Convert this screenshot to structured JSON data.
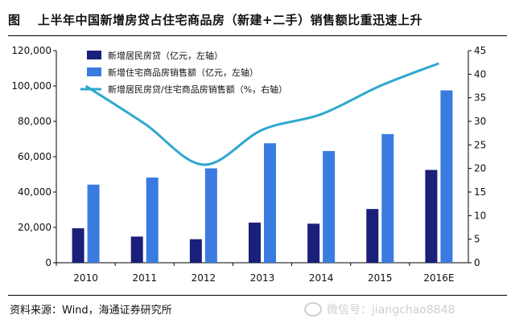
{
  "header": {
    "figure_label": "图",
    "title": "上半年中国新增房贷占住宅商品房（新建+二手）销售额比重迅速上升"
  },
  "chart_data": {
    "type": "bar",
    "categories": [
      "2010",
      "2011",
      "2012",
      "2013",
      "2014",
      "2015",
      "2016E"
    ],
    "series": [
      {
        "name": "新增居民房贷（亿元，左轴）",
        "kind": "bar",
        "axis": "left",
        "color": "#1a1f7a",
        "values": [
          19500,
          14800,
          13300,
          22700,
          22100,
          30400,
          52500
        ]
      },
      {
        "name": "新增住宅商品房销售额（亿元，左轴）",
        "kind": "bar",
        "axis": "left",
        "color": "#3a7be0",
        "values": [
          44200,
          48200,
          53400,
          67600,
          63200,
          72800,
          97500
        ]
      },
      {
        "name": "新增居民房贷/住宅商品房销售额（%，右轴）",
        "kind": "line",
        "axis": "right",
        "color": "#2ea8cf",
        "values": [
          37.5,
          29.5,
          20.8,
          28.2,
          31.5,
          37.5,
          42.3
        ]
      }
    ],
    "y_left": {
      "min": 0,
      "max": 120000,
      "ticks": [
        "0",
        "20,000",
        "40,000",
        "60,000",
        "80,000",
        "100,000",
        "120,000"
      ]
    },
    "y_right": {
      "min": 0,
      "max": 45,
      "ticks": [
        "0",
        "5",
        "10",
        "15",
        "20",
        "25",
        "30",
        "35",
        "40",
        "45"
      ]
    },
    "legend_position": "top-left"
  },
  "footer": {
    "source": "资料来源：Wind，海通证券研究所",
    "watermark": "微信号：jiangchao8848",
    "watermark_icon": "wechat-icon"
  }
}
